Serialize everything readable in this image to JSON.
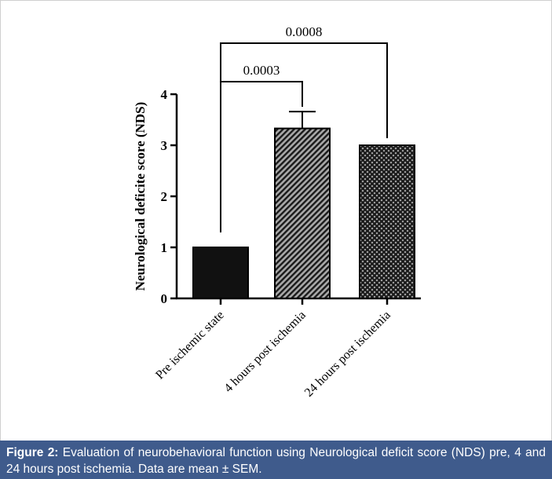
{
  "chart_data": {
    "type": "bar",
    "categories": [
      "Pre ischemic state",
      "4 hours post ischemia",
      "24 hours post ischemia"
    ],
    "values": [
      1.0,
      3.33,
      3.0
    ],
    "error_bars": [
      0,
      0.33,
      0
    ],
    "ylabel": "Neurological deficite score (NDS)",
    "xlabel": "",
    "ylim": [
      0,
      4
    ],
    "yticks": [
      "0",
      "1",
      "2",
      "3",
      "4"
    ],
    "bar_fills": [
      "solid",
      "diagonal-hatch",
      "crosshatch"
    ],
    "comparisons": [
      {
        "from": 0,
        "to": 1,
        "label": "0.0003"
      },
      {
        "from": 0,
        "to": 2,
        "label": "0.0008"
      }
    ],
    "grid": false,
    "legend": "none"
  },
  "caption": {
    "label": "Figure 2:",
    "text": " Evaluation of neurobehavioral function using Neurological deficit score (NDS) pre, 4 and 24 hours post ischemia. Data are mean ± SEM."
  },
  "colors": {
    "bar_dark": "#111111",
    "hatch_light": "#a8a8a8",
    "caption_bg": "#3f5b8c",
    "caption_text": "#ffffff"
  }
}
